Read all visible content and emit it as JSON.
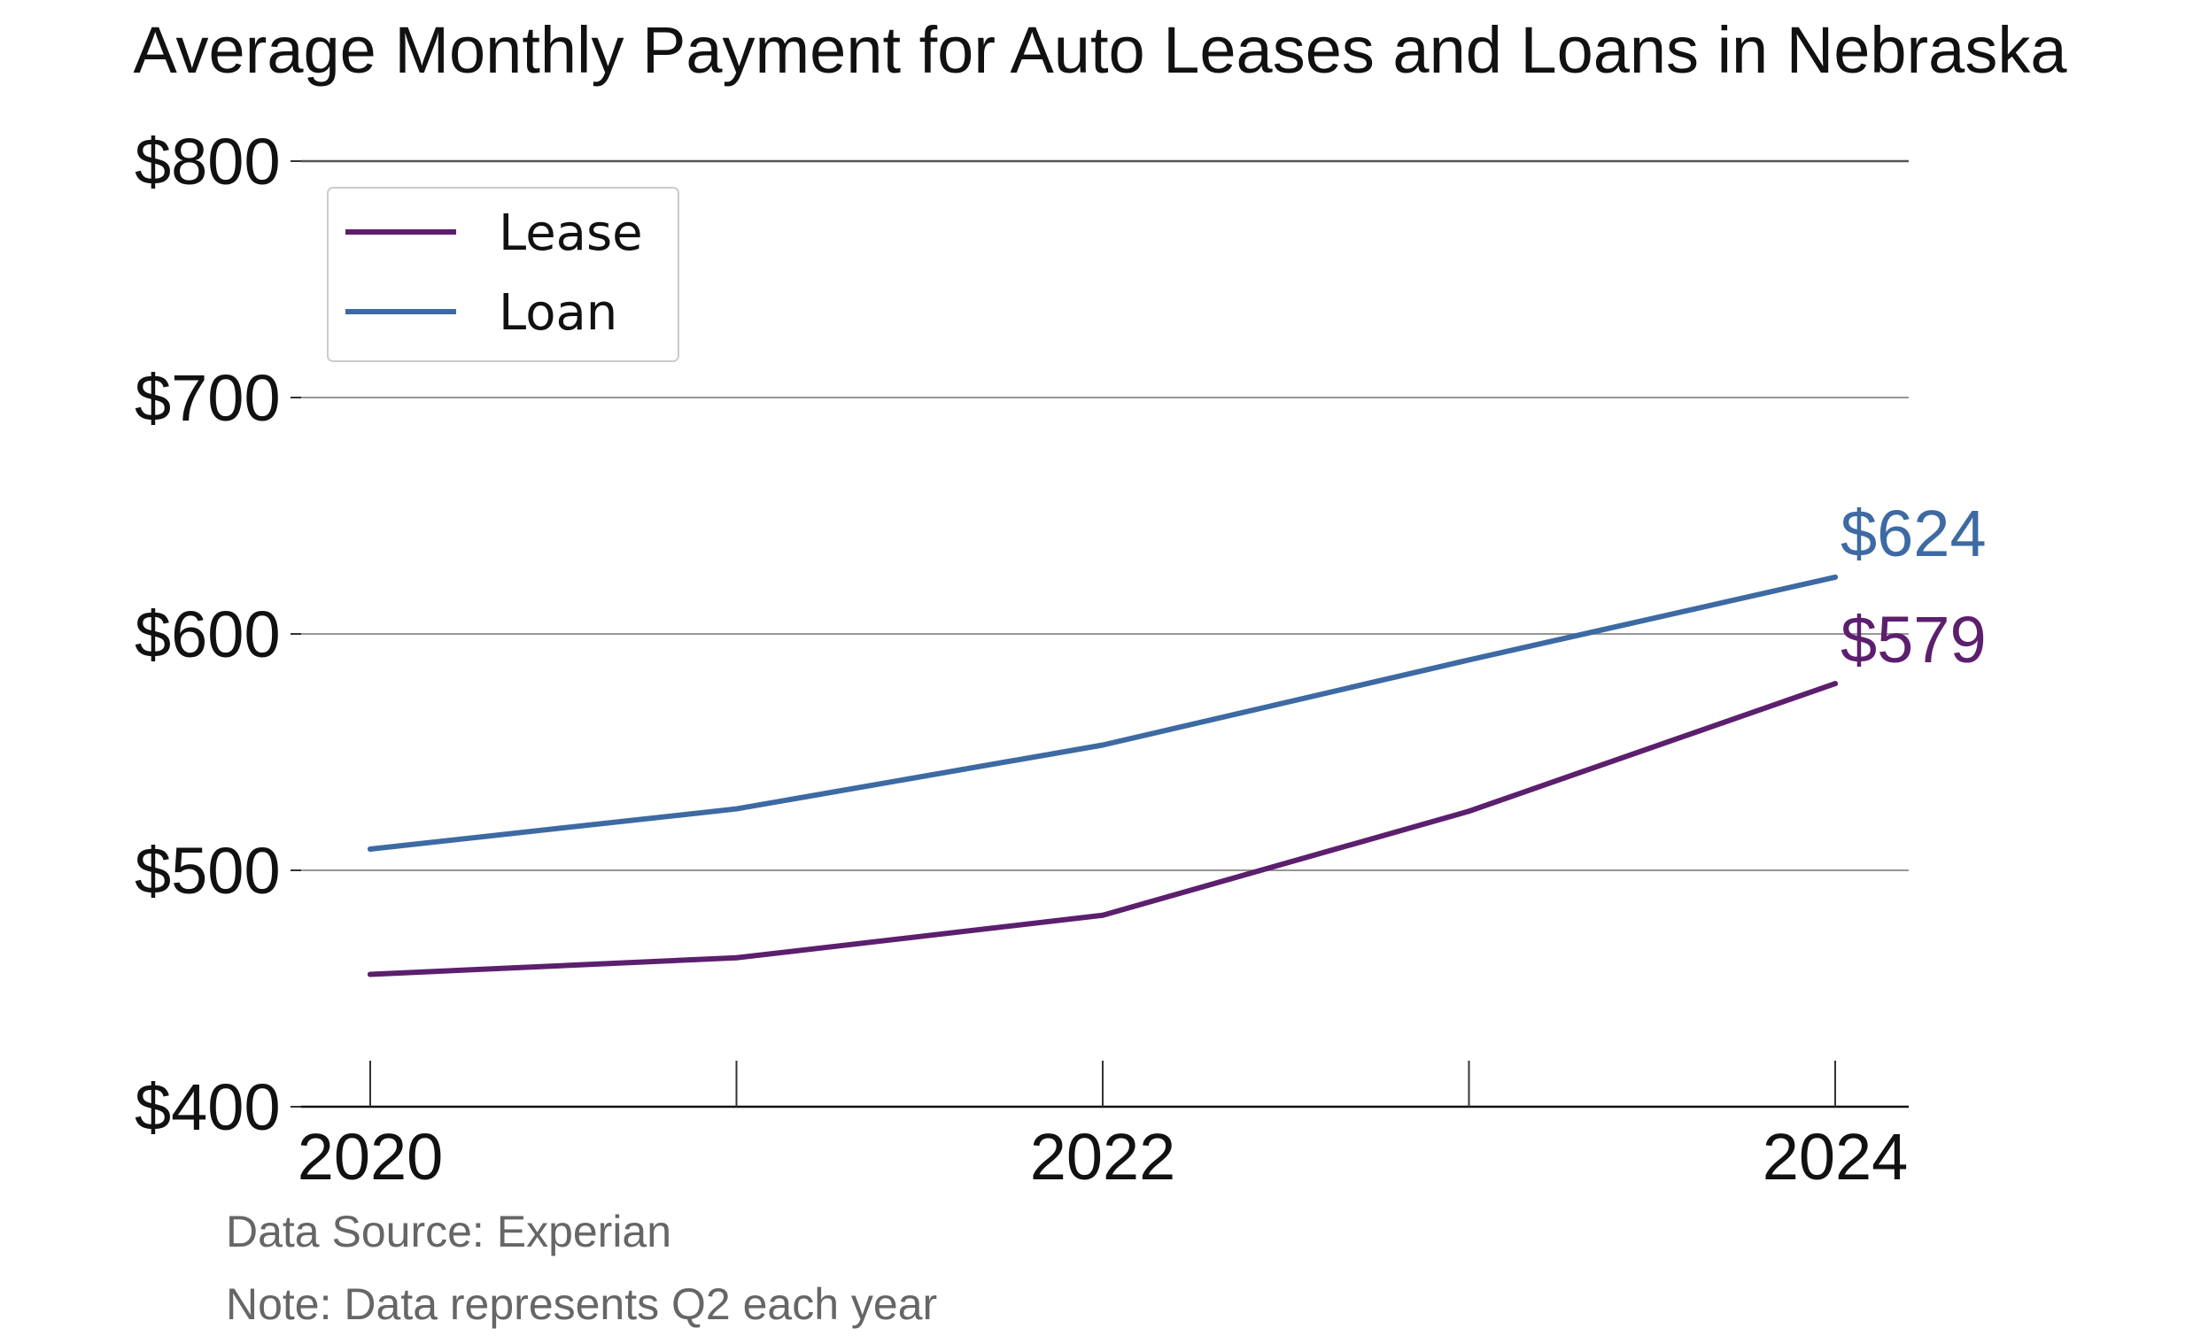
{
  "chart_data": {
    "type": "line",
    "title": "Average Monthly Payment for Auto Leases and Loans in Nebraska",
    "xlabel": "",
    "ylabel": "",
    "x": [
      2020,
      2021,
      2022,
      2023,
      2024
    ],
    "x_tick_labels": [
      "2020",
      "2022",
      "2024"
    ],
    "x_tick_values": [
      2020,
      2022,
      2024
    ],
    "xlim": [
      2020,
      2024
    ],
    "ylim": [
      400,
      800
    ],
    "y_ticks": [
      400,
      500,
      600,
      700,
      800
    ],
    "y_tick_labels": [
      "$400",
      "$500",
      "$600",
      "$700",
      "$800"
    ],
    "grid": "horizontal",
    "legend": "top-left",
    "series": [
      {
        "name": "Lease",
        "color": "#5c1f6e",
        "values": [
          456,
          463,
          481,
          525,
          579
        ],
        "end_label": "$579"
      },
      {
        "name": "Loan",
        "color": "#3d6aa3",
        "values": [
          509,
          526,
          553,
          589,
          624
        ],
        "end_label": "$624"
      }
    ],
    "source": "Data Source: Experian",
    "note": "Note: Data represents Q2 each year"
  }
}
